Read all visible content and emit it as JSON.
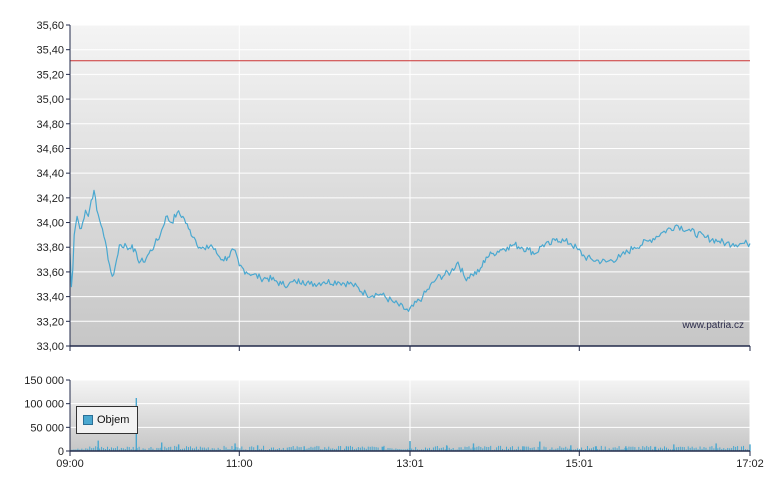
{
  "chart_data": [
    {
      "type": "line",
      "title": "",
      "x_ticks": [
        "09:00",
        "11:00",
        "13:01",
        "15:01",
        "17:02"
      ],
      "y_ticks": [
        "33,00",
        "33,20",
        "33,40",
        "33,60",
        "33,80",
        "34,00",
        "34,20",
        "34,40",
        "34,60",
        "34,80",
        "35,00",
        "35,20",
        "35,40",
        "35,60"
      ],
      "ylim": [
        33.0,
        35.6
      ],
      "xlim_minutes": [
        540,
        1022
      ],
      "reference_line": {
        "value": 35.31,
        "color": "#cc3333"
      },
      "watermark": "www.patria.cz",
      "line_color": "#4aa8d0",
      "grid": true,
      "series": [
        {
          "x": [
            "09:00",
            "09:01",
            "09:02",
            "09:03",
            "09:05",
            "09:07",
            "09:09",
            "09:11",
            "09:13",
            "09:15",
            "09:17",
            "09:19",
            "09:21",
            "09:23",
            "09:25",
            "09:27",
            "09:29",
            "09:31",
            "09:33",
            "09:35",
            "09:37",
            "09:39",
            "09:41",
            "09:44",
            "09:48",
            "09:52",
            "09:56",
            "10:00",
            "10:04",
            "10:08",
            "10:12",
            "10:16",
            "10:20",
            "10:24",
            "10:28",
            "10:32",
            "10:36",
            "10:40",
            "10:44",
            "10:48",
            "10:52",
            "10:56",
            "11:00",
            "11:05",
            "11:10",
            "11:15",
            "11:20",
            "11:25",
            "11:30",
            "11:35",
            "11:40",
            "11:45",
            "11:50",
            "12:00",
            "12:10",
            "12:20",
            "12:30",
            "12:40",
            "12:50",
            "13:00",
            "13:10",
            "13:20",
            "13:30",
            "13:35",
            "13:40",
            "13:45",
            "13:50",
            "13:55",
            "14:00",
            "14:05",
            "14:10",
            "14:15",
            "14:20",
            "14:25",
            "14:30",
            "14:35",
            "14:40",
            "14:45",
            "14:50",
            "14:55",
            "15:00",
            "15:05",
            "15:10",
            "15:20",
            "15:30",
            "15:40",
            "15:50",
            "16:00",
            "16:10",
            "16:20",
            "16:30",
            "16:40",
            "16:45",
            "16:50",
            "16:55",
            "17:00",
            "17:02"
          ],
          "values": [
            33.75,
            33.48,
            33.62,
            33.9,
            34.05,
            33.95,
            34.0,
            34.1,
            34.05,
            34.18,
            34.26,
            34.1,
            34.02,
            33.95,
            33.85,
            33.7,
            33.6,
            33.58,
            33.7,
            33.82,
            33.8,
            33.83,
            33.78,
            33.82,
            33.7,
            33.68,
            33.75,
            33.82,
            33.9,
            34.05,
            34.0,
            34.08,
            34.05,
            33.95,
            33.88,
            33.8,
            33.78,
            33.82,
            33.75,
            33.7,
            33.72,
            33.78,
            33.65,
            33.6,
            33.58,
            33.55,
            33.55,
            33.53,
            33.5,
            33.5,
            33.52,
            33.53,
            33.5,
            33.52,
            33.52,
            33.5,
            33.42,
            33.42,
            33.35,
            33.28,
            33.4,
            33.55,
            33.6,
            33.68,
            33.55,
            33.58,
            33.6,
            33.72,
            33.75,
            33.78,
            33.8,
            33.82,
            33.8,
            33.78,
            33.75,
            33.82,
            33.82,
            33.87,
            33.85,
            33.83,
            33.78,
            33.72,
            33.7,
            33.68,
            33.72,
            33.8,
            33.85,
            33.92,
            33.98,
            33.93,
            33.88,
            33.85,
            33.83,
            33.83,
            33.83,
            33.83,
            33.83
          ]
        }
      ]
    },
    {
      "type": "bar",
      "y_ticks": [
        "0",
        "50 000",
        "100 000",
        "150 000"
      ],
      "ylim": [
        0,
        150000
      ],
      "xlim_minutes": [
        540,
        1022
      ],
      "bar_color": "#4aa8d0",
      "grid": true,
      "series": [
        {
          "name": "Objem",
          "x": [
            "09:20",
            "09:47",
            "10:05",
            "10:17",
            "10:57",
            "11:13",
            "11:46",
            "12:16",
            "12:42",
            "13:01",
            "13:27",
            "13:46",
            "14:21",
            "14:33",
            "14:55",
            "15:13",
            "15:34",
            "15:55",
            "16:08",
            "16:38",
            "17:02"
          ],
          "values": [
            22000,
            112000,
            18000,
            14000,
            16000,
            12000,
            10000,
            10000,
            9000,
            21000,
            12000,
            16000,
            10000,
            20000,
            12000,
            10000,
            10000,
            9000,
            14000,
            16000,
            14000
          ]
        }
      ]
    }
  ],
  "legend": {
    "label": "Objem",
    "swatch_color": "#4aa8d0"
  }
}
